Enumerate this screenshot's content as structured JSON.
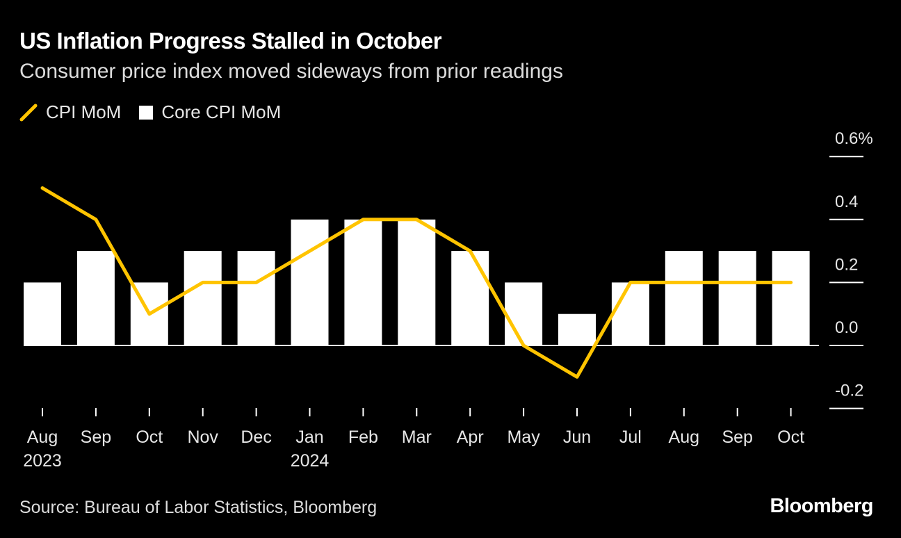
{
  "title": "US Inflation Progress Stalled in October",
  "subtitle": "Consumer price index moved sideways from prior readings",
  "source": "Source: Bureau of Labor Statistics, Bloomberg",
  "brand": "Bloomberg",
  "colors": {
    "line": "#FFC400",
    "bar": "#FFFFFF",
    "background": "#000000",
    "text": "#FFFFFF"
  },
  "chart_data": {
    "type": "bar",
    "title": "US Inflation Progress Stalled in October",
    "subtitle": "Consumer price index moved sideways from prior readings",
    "categories": [
      "Aug",
      "Sep",
      "Oct",
      "Nov",
      "Dec",
      "Jan",
      "Feb",
      "Mar",
      "Apr",
      "May",
      "Jun",
      "Jul",
      "Aug",
      "Sep",
      "Oct"
    ],
    "year_labels": [
      "2023",
      "",
      "",
      "",
      "",
      "2024",
      "",
      "",
      "",
      "",
      "",
      "",
      "",
      "",
      ""
    ],
    "series": [
      {
        "name": "CPI MoM",
        "kind": "line",
        "values": [
          0.5,
          0.4,
          0.1,
          0.2,
          0.2,
          0.3,
          0.4,
          0.4,
          0.3,
          0.0,
          -0.1,
          0.2,
          0.2,
          0.2,
          0.2
        ]
      },
      {
        "name": "Core CPI MoM",
        "kind": "bar",
        "values": [
          0.2,
          0.3,
          0.2,
          0.3,
          0.3,
          0.4,
          0.4,
          0.4,
          0.3,
          0.2,
          0.1,
          0.2,
          0.3,
          0.3,
          0.3
        ]
      }
    ],
    "ylim": [
      -0.2,
      0.6
    ],
    "yticks": [
      0.6,
      0.4,
      0.2,
      0.0,
      -0.2
    ],
    "ytick_labels": [
      "0.6%",
      "0.4",
      "0.2",
      "0.0",
      "-0.2"
    ],
    "xlabel": "",
    "ylabel": "",
    "legend_position": "top-left",
    "y_axis_side": "right"
  }
}
